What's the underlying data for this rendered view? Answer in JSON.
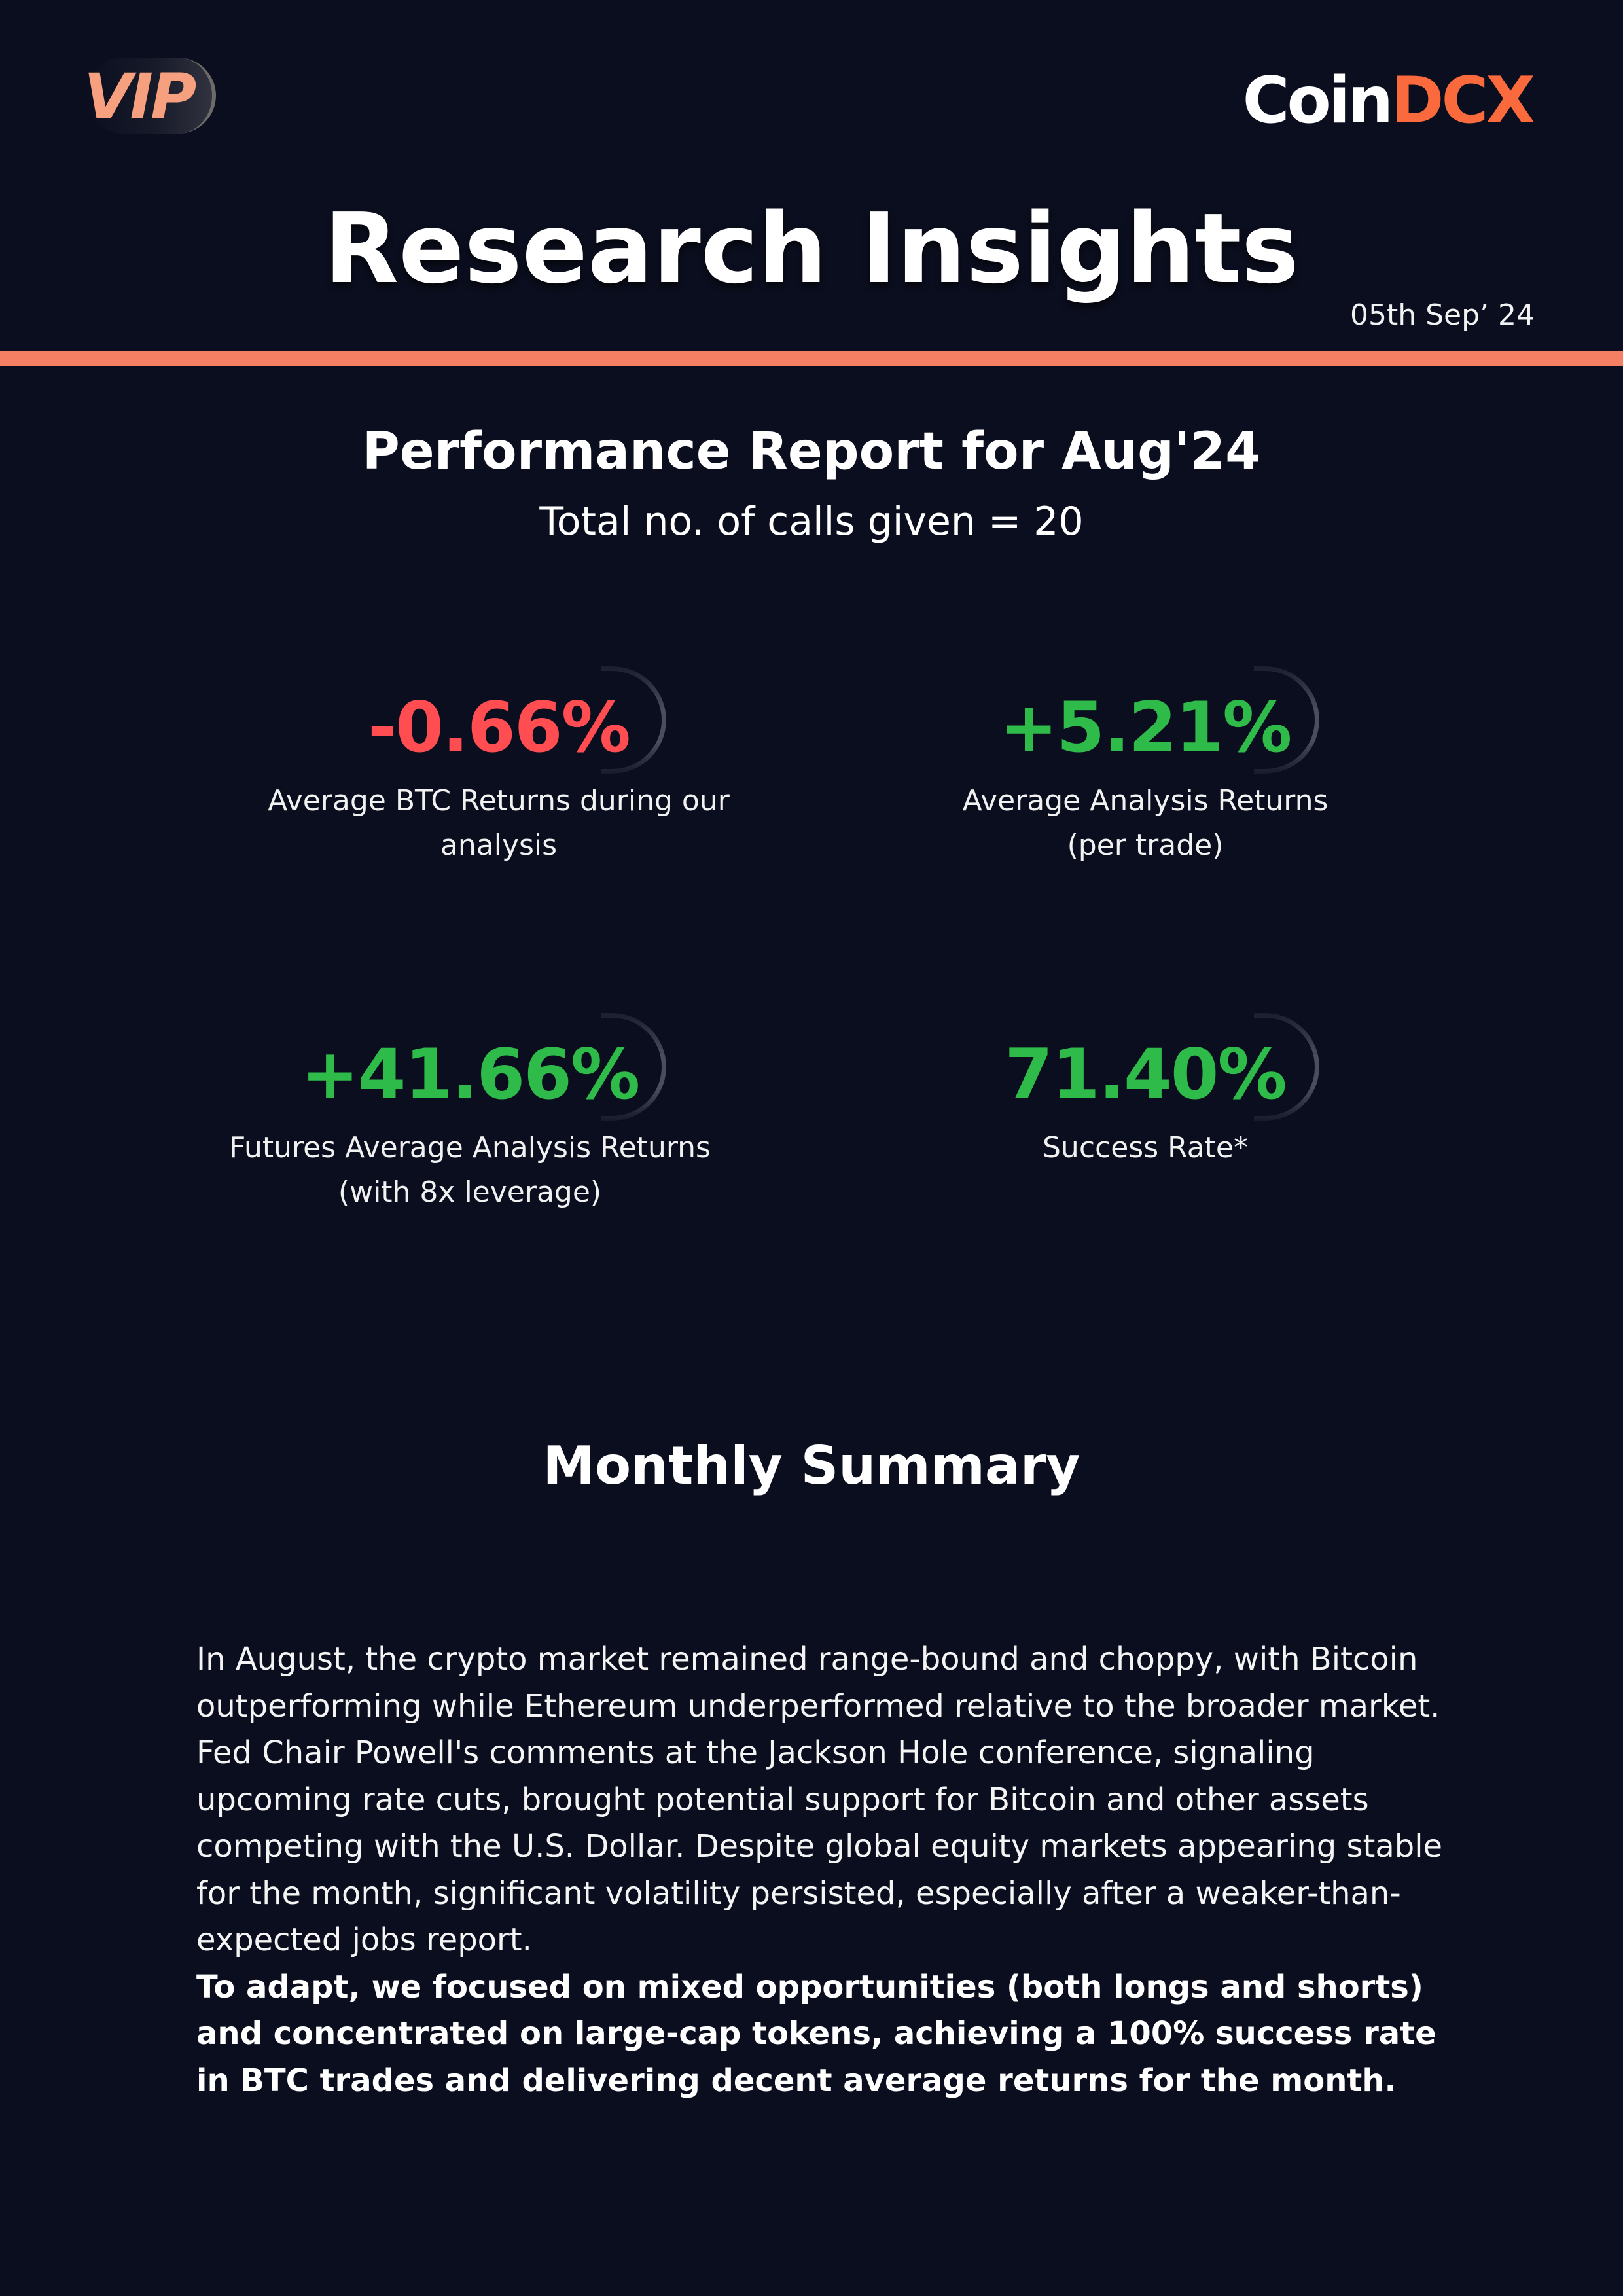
{
  "header": {
    "vip_badge": "VIP",
    "logo": {
      "part1": "Coin",
      "part2": "DCX"
    },
    "title": "Research Insights",
    "date": "05th Sep’ 24"
  },
  "report": {
    "title": "Performance Report for Aug'24",
    "calls": "Total no. of calls given = 20"
  },
  "stats": [
    {
      "value": "-0.66%",
      "label_line1": "Average BTC Returns during our",
      "label_line2": "analysis",
      "color": "#ff4d52"
    },
    {
      "value": "+5.21%",
      "label_line1": "Average Analysis Returns",
      "label_line2": "(per trade)",
      "color": "#2fbb4a"
    },
    {
      "value": "+41.66%",
      "label_line1": "Futures Average Analysis Returns",
      "label_line2": "(with 8x leverage)",
      "color": "#2fbb4a"
    },
    {
      "value": "71.40%",
      "label_line1": "Success Rate*",
      "label_line2": "",
      "color": "#2fbb4a"
    }
  ],
  "summary": {
    "title": "Monthly Summary",
    "paragraph": "In August, the crypto market remained range-bound and choppy, with Bitcoin outperforming while Ethereum underperformed relative to the broader market. Fed Chair Powell's comments at the Jackson Hole conference, signaling upcoming rate cuts, brought potential support for Bitcoin and other assets competing with the U.S. Dollar. Despite global equity markets appearing stable for the month, significant volatility persisted, especially after a weaker-than-expected jobs report.",
    "bold_paragraph": "To adapt, we focused on mixed opportunities (both longs and shorts) and concentrated on large-cap tokens, achieving a 100% success rate in BTC trades and delivering decent average returns for the month."
  },
  "colors": {
    "background": "#0b0e1e",
    "accent": "#f47f62",
    "negative": "#ff4d52",
    "positive": "#2fbb4a"
  }
}
